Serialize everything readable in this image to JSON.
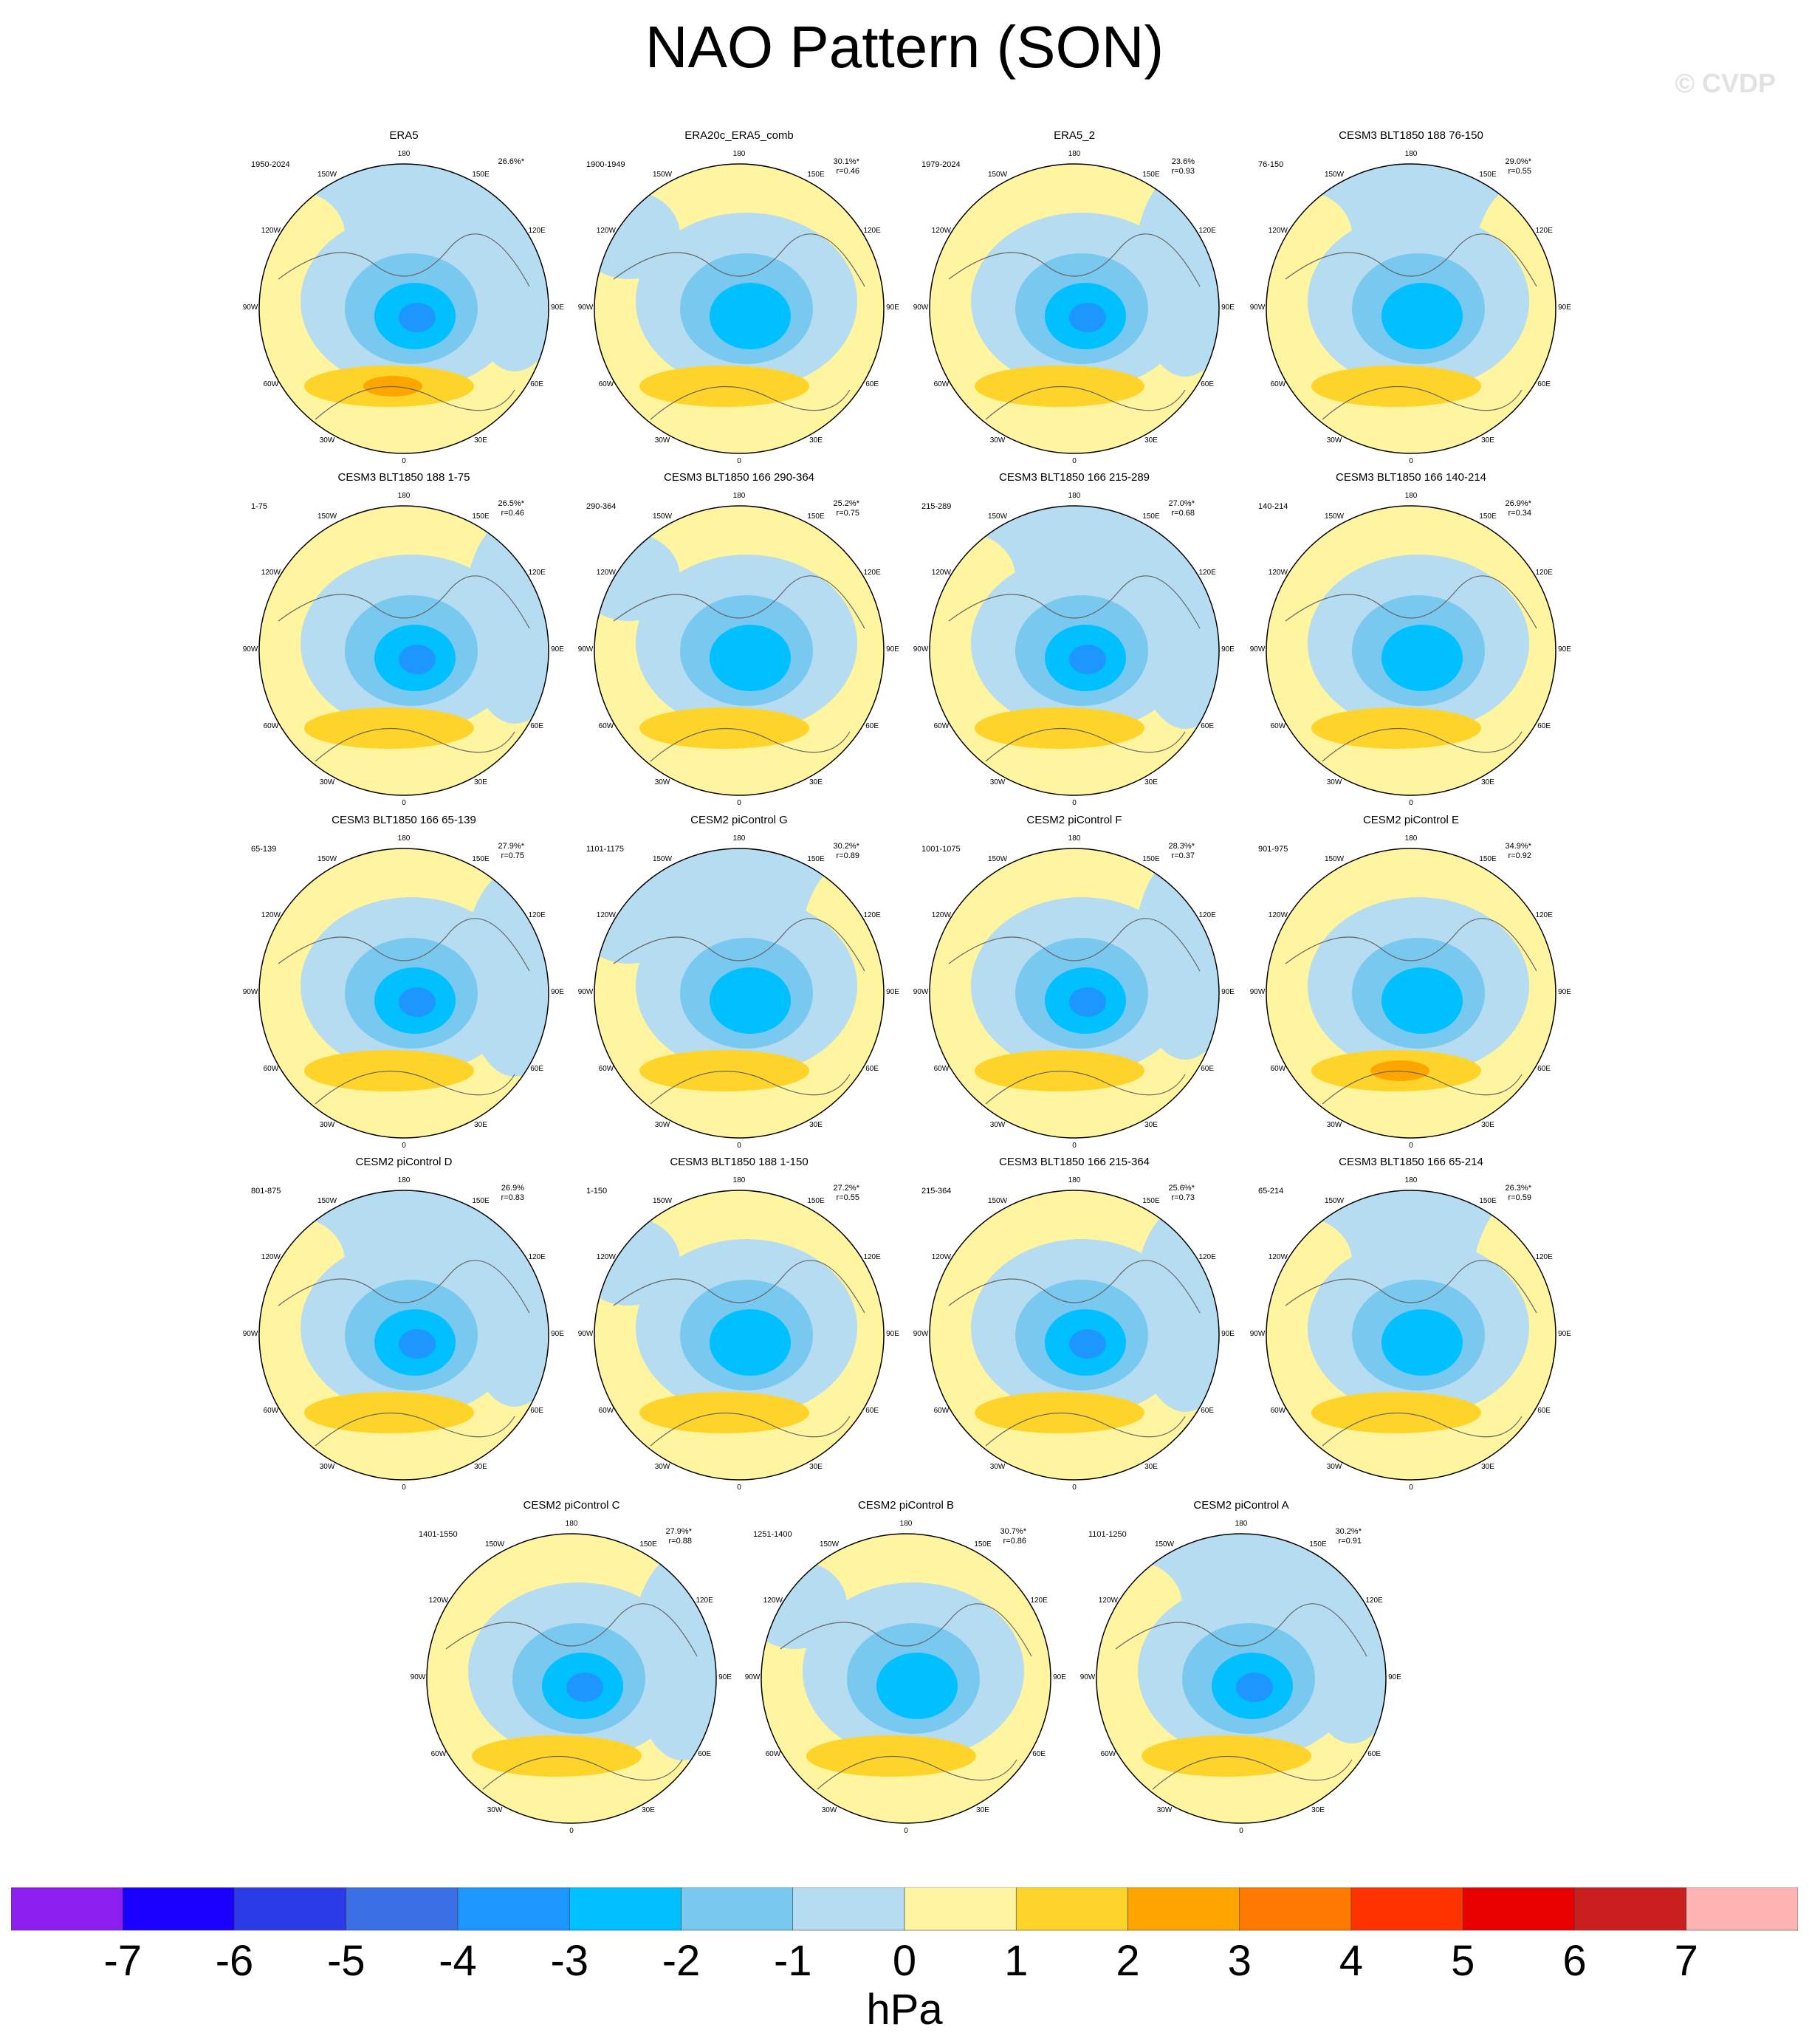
{
  "title": "NAO Pattern (SON)",
  "watermark": "© CVDP",
  "longitude_labels": [
    "180",
    "150E",
    "120E",
    "90E",
    "60E",
    "30E",
    "0",
    "30W",
    "60W",
    "90W",
    "120W",
    "150W"
  ],
  "chart_data": {
    "type": "heatmap",
    "projection": "north polar stereographic",
    "field": "NAO pattern, sea level pressure anomaly",
    "panels": [
      {
        "title": "ERA5",
        "years": "1950-2024",
        "stats": [
          "26.6%*"
        ]
      },
      {
        "title": "ERA20c_ERA5_comb",
        "years": "1900-1949",
        "stats": [
          "30.1%*",
          "r=0.46"
        ]
      },
      {
        "title": "ERA5_2",
        "years": "1979-2024",
        "stats": [
          "23.6%",
          "r=0.93"
        ]
      },
      {
        "title": "CESM3 BLT1850 188 76-150",
        "years": "76-150",
        "stats": [
          "29.0%*",
          "r=0.55"
        ]
      },
      {
        "title": "CESM3 BLT1850 188 1-75",
        "years": "1-75",
        "stats": [
          "26.5%*",
          "r=0.46"
        ]
      },
      {
        "title": "CESM3 BLT1850 166 290-364",
        "years": "290-364",
        "stats": [
          "25.2%*",
          "r=0.75"
        ]
      },
      {
        "title": "CESM3 BLT1850 166 215-289",
        "years": "215-289",
        "stats": [
          "27.0%*",
          "r=0.68"
        ]
      },
      {
        "title": "CESM3 BLT1850 166 140-214",
        "years": "140-214",
        "stats": [
          "26.9%*",
          "r=0.34"
        ]
      },
      {
        "title": "CESM3 BLT1850 166 65-139",
        "years": "65-139",
        "stats": [
          "27.9%*",
          "r=0.75"
        ]
      },
      {
        "title": "CESM2 piControl G",
        "years": "1101-1175",
        "stats": [
          "30.2%*",
          "r=0.89"
        ]
      },
      {
        "title": "CESM2 piControl F",
        "years": "1001-1075",
        "stats": [
          "28.3%*",
          "r=0.37"
        ]
      },
      {
        "title": "CESM2 piControl E",
        "years": "901-975",
        "stats": [
          "34.9%*",
          "r=0.92"
        ]
      },
      {
        "title": "CESM2 piControl D",
        "years": "801-875",
        "stats": [
          "26.9%",
          "r=0.83"
        ]
      },
      {
        "title": "CESM3 BLT1850 188 1-150",
        "years": "1-150",
        "stats": [
          "27.2%*",
          "r=0.55"
        ]
      },
      {
        "title": "CESM3 BLT1850 166 215-364",
        "years": "215-364",
        "stats": [
          "25.6%*",
          "r=0.73"
        ]
      },
      {
        "title": "CESM3 BLT1850 166 65-214",
        "years": "65-214",
        "stats": [
          "26.3%*",
          "r=0.59"
        ]
      },
      {
        "title": "CESM2 piControl C",
        "years": "1401-1550",
        "stats": [
          "27.9%*",
          "r=0.88"
        ]
      },
      {
        "title": "CESM2 piControl B",
        "years": "1251-1400",
        "stats": [
          "30.7%*",
          "r=0.86"
        ]
      },
      {
        "title": "CESM2 piControl A",
        "years": "1101-1250",
        "stats": [
          "30.2%*",
          "r=0.91"
        ]
      }
    ],
    "colorbar": {
      "ticks": [
        "-7",
        "-6",
        "-5",
        "-4",
        "-3",
        "-2",
        "-1",
        "0",
        "1",
        "2",
        "3",
        "4",
        "5",
        "6",
        "7"
      ],
      "unit": "hPa",
      "colors": [
        "#8a1ff0",
        "#1a00ff",
        "#2b3ce6",
        "#3a6fe6",
        "#1e96ff",
        "#00c0ff",
        "#79c8f0",
        "#b5dcf0",
        "#fff5a0",
        "#ffd42a",
        "#ffa500",
        "#ff7800",
        "#ff3200",
        "#e60000",
        "#c81e1e",
        "#ffb4b4"
      ]
    }
  }
}
